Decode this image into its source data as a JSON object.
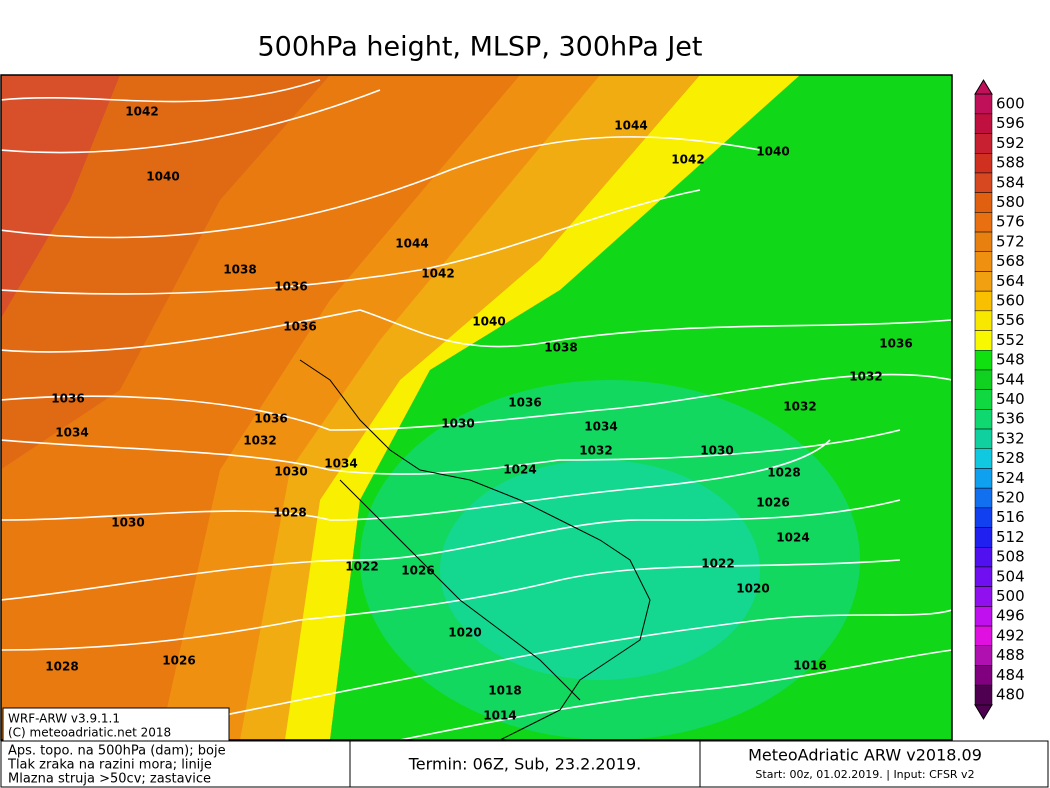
{
  "title": "500hPa height, MLSP, 300hPa Jet",
  "colorbar": {
    "ticks": [
      600,
      596,
      592,
      588,
      584,
      580,
      576,
      572,
      568,
      564,
      560,
      556,
      552,
      548,
      544,
      540,
      536,
      532,
      528,
      524,
      520,
      516,
      512,
      508,
      504,
      500,
      496,
      492,
      488,
      484,
      480
    ],
    "colors": [
      "#c0105a",
      "#c01040",
      "#c82030",
      "#d03020",
      "#d84820",
      "#e06010",
      "#e87010",
      "#e88010",
      "#f09010",
      "#f0a010",
      "#f8c000",
      "#f8e800",
      "#f8f800",
      "#10e010",
      "#10d020",
      "#10d840",
      "#10d870",
      "#10d0a0",
      "#10c8e0",
      "#10a0f0",
      "#1070f0",
      "#1040f0",
      "#2020f0",
      "#5010f0",
      "#7010f0",
      "#9010f0",
      "#c010f0",
      "#e010e0",
      "#b010b0",
      "#800080",
      "#500050"
    ]
  },
  "isobar_labels": [
    "1042",
    "1040",
    "1044",
    "1042",
    "1040",
    "1044",
    "1042",
    "1038",
    "1036",
    "1036",
    "1040",
    "1038",
    "1036",
    "1032",
    "1036",
    "1034",
    "1036",
    "1032",
    "1030",
    "1036",
    "1034",
    "1032",
    "1032",
    "1030",
    "1030",
    "1034",
    "1024",
    "1028",
    "1030",
    "1028",
    "1026",
    "1024",
    "1022",
    "1026",
    "1022",
    "1020",
    "1020",
    "1028",
    "1026",
    "1016",
    "1018",
    "1014"
  ],
  "model_box": [
    "WRF-ARW v3.9.1.1",
    "(C) meteoadriatic.net 2018"
  ],
  "footer": {
    "legend_lines": [
      "Aps. topo. na 500hPa (dam); boje",
      "Tlak zraka na razini mora; linije",
      "Mlazna struja >50cv; zastavice"
    ],
    "termin": "Termin: 06Z, Sub, 23.2.2019.",
    "brand": "MeteoAdriatic ARW v2018.09",
    "start": "Start: 00z, 01.02.2019. | Input: CFSR v2"
  }
}
